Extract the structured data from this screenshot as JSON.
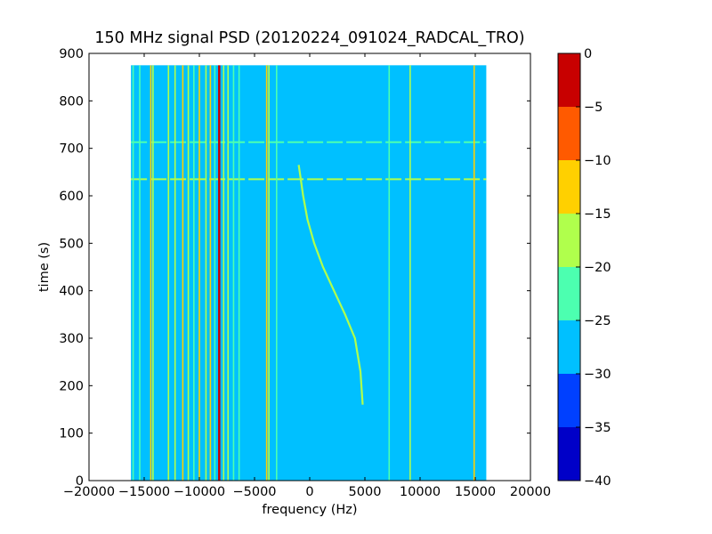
{
  "chart_data": {
    "type": "heatmap",
    "title": "150 MHz signal PSD (20120224_091024_RADCAL_TRO)",
    "xlabel": "frequency (Hz)",
    "ylabel": "time (s)",
    "xlim": [
      -20000,
      20000
    ],
    "ylim": [
      0,
      900
    ],
    "xticks": [
      -20000,
      -15000,
      -10000,
      -5000,
      0,
      5000,
      10000,
      15000,
      20000
    ],
    "xtick_labels": [
      "−20000",
      "−15000",
      "−10000",
      "−5000",
      "0",
      "5000",
      "10000",
      "15000",
      "20000"
    ],
    "yticks": [
      0,
      100,
      200,
      300,
      400,
      500,
      600,
      700,
      800,
      900
    ],
    "ytick_labels": [
      "0",
      "100",
      "200",
      "300",
      "400",
      "500",
      "600",
      "700",
      "800",
      "900"
    ],
    "data_extent": {
      "x": [
        -16200,
        16000
      ],
      "y": [
        0,
        875
      ]
    },
    "background_level": -28,
    "colorbar": {
      "min": -40,
      "max": 0,
      "ticks": [
        0,
        -5,
        -10,
        -15,
        -20,
        -25,
        -30,
        -35,
        -40
      ],
      "tick_labels": [
        "0",
        "−5",
        "−10",
        "−15",
        "−20",
        "−25",
        "−30",
        "−35",
        "−40"
      ],
      "bands": [
        {
          "from": -40,
          "to": -35,
          "color": "#0000c8"
        },
        {
          "from": -35,
          "to": -30,
          "color": "#0040ff"
        },
        {
          "from": -30,
          "to": -25,
          "color": "#00c0ff"
        },
        {
          "from": -25,
          "to": -20,
          "color": "#4cffb0"
        },
        {
          "from": -20,
          "to": -15,
          "color": "#b0ff4c"
        },
        {
          "from": -15,
          "to": -10,
          "color": "#ffd000"
        },
        {
          "from": -10,
          "to": -5,
          "color": "#ff5a00"
        },
        {
          "from": -5,
          "to": 0,
          "color": "#c80000"
        }
      ]
    },
    "vertical_lines": [
      {
        "freq": -16000,
        "level": -24,
        "t": [
          0,
          875
        ]
      },
      {
        "freq": -15400,
        "level": -22,
        "t": [
          0,
          875
        ]
      },
      {
        "freq": -14400,
        "level": -15,
        "t": [
          0,
          875
        ]
      },
      {
        "freq": -14200,
        "level": -18,
        "t": [
          0,
          875
        ]
      },
      {
        "freq": -12800,
        "level": -18,
        "t": [
          0,
          875
        ]
      },
      {
        "freq": -12200,
        "level": -20,
        "t": [
          0,
          875
        ]
      },
      {
        "freq": -11500,
        "level": -15,
        "t": [
          0,
          875
        ]
      },
      {
        "freq": -11000,
        "level": -18,
        "t": [
          0,
          875
        ]
      },
      {
        "freq": -10500,
        "level": -22,
        "t": [
          0,
          875
        ]
      },
      {
        "freq": -10000,
        "level": -13,
        "t": [
          0,
          875
        ]
      },
      {
        "freq": -9400,
        "level": -18,
        "t": [
          0,
          875
        ]
      },
      {
        "freq": -9000,
        "level": -12,
        "t": [
          0,
          875
        ]
      },
      {
        "freq": -8600,
        "level": -22,
        "t": [
          0,
          875
        ]
      },
      {
        "freq": -8200,
        "level": -3,
        "t": [
          0,
          875
        ]
      },
      {
        "freq": -7800,
        "level": -18,
        "t": [
          0,
          875
        ]
      },
      {
        "freq": -7400,
        "level": -20,
        "t": [
          0,
          875
        ]
      },
      {
        "freq": -6900,
        "level": -22,
        "t": [
          0,
          875
        ]
      },
      {
        "freq": -6400,
        "level": -24,
        "t": [
          0,
          875
        ]
      },
      {
        "freq": -3900,
        "level": -15,
        "t": [
          0,
          875
        ]
      },
      {
        "freq": -3700,
        "level": -20,
        "t": [
          0,
          875
        ]
      },
      {
        "freq": -3000,
        "level": -24,
        "t": [
          0,
          875
        ]
      },
      {
        "freq": 7200,
        "level": -24,
        "t": [
          0,
          875
        ]
      },
      {
        "freq": 9100,
        "level": -18,
        "t": [
          0,
          875
        ]
      },
      {
        "freq": 14900,
        "level": -15,
        "t": [
          0,
          875
        ]
      }
    ],
    "horizontal_lines": [
      {
        "time": 635,
        "level": -20,
        "freq": [
          -16200,
          16000
        ]
      },
      {
        "time": 713,
        "level": -22,
        "freq": [
          -16200,
          16000
        ]
      }
    ],
    "drift_trace": {
      "level": -18,
      "points": [
        {
          "freq": 4800,
          "time": 160
        },
        {
          "freq": 4600,
          "time": 230
        },
        {
          "freq": 4100,
          "time": 300
        },
        {
          "freq": 3200,
          "time": 350
        },
        {
          "freq": 2200,
          "time": 400
        },
        {
          "freq": 1200,
          "time": 450
        },
        {
          "freq": 400,
          "time": 500
        },
        {
          "freq": -200,
          "time": 550
        },
        {
          "freq": -600,
          "time": 600
        },
        {
          "freq": -900,
          "time": 650
        },
        {
          "freq": -1000,
          "time": 665
        }
      ]
    }
  }
}
